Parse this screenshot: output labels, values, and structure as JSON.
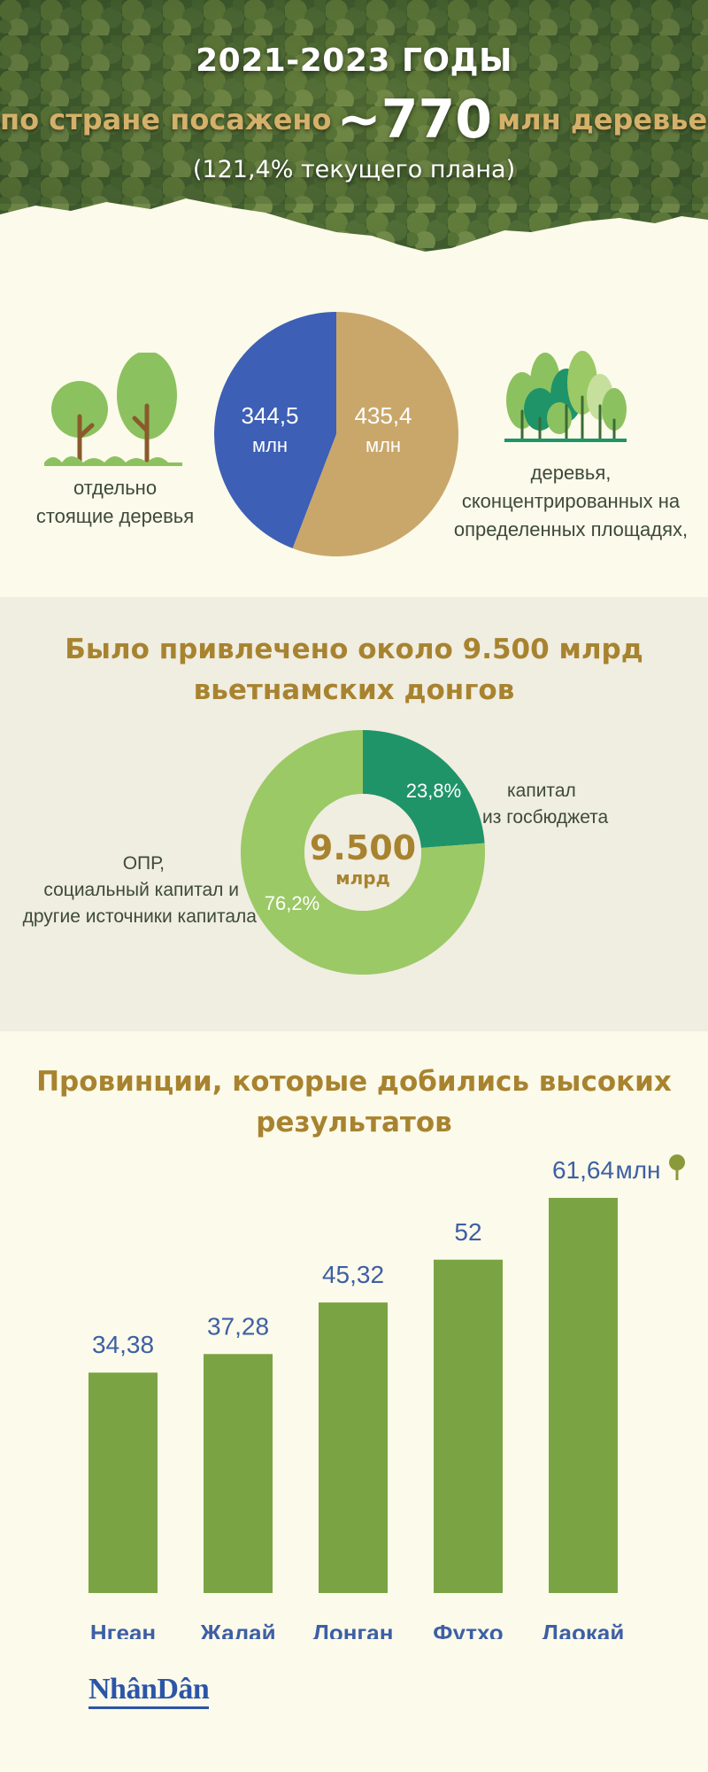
{
  "header": {
    "years": "2021-2023 ГОДЫ",
    "line_prefix": "по стране посажено",
    "big_number": "~770",
    "line_suffix": "млн деревьев",
    "sub": "(121,4%   текущего плана)"
  },
  "trees_split": {
    "left_label_1": "отдельно",
    "left_label_2": "стоящие деревья",
    "right_label_1": "деревья,",
    "right_label_2": "сконцентрированных на",
    "right_label_3": "определенных площадях,",
    "slices": [
      {
        "value": 344.5,
        "label": "344,5",
        "unit": "млн",
        "color": "#3d5fb5"
      },
      {
        "value": 435.4,
        "label": "435,4",
        "unit": "млн",
        "color": "#c9a76b"
      }
    ]
  },
  "funding": {
    "title_1": "Было привлечено около 9.500 млрд",
    "title_2": "вьетнамских донгов",
    "center_value": "9.500",
    "center_unit": "млрд",
    "state_label_1": "капитал",
    "state_label_2": "из госбюджета",
    "other_label_1": "ОПР,",
    "other_label_2": "социальный капитал и",
    "other_label_3": "другие источники капитала",
    "slices": [
      {
        "value": 23.8,
        "label": "23,8%",
        "color": "#1f9468"
      },
      {
        "value": 76.2,
        "label": "76,2%",
        "color": "#9bc965"
      }
    ]
  },
  "provinces": {
    "title_1": "Провинции, которые добились высоких",
    "title_2": "результатов",
    "unit": "млн"
  },
  "chart_data": [
    {
      "type": "pie",
      "categories": [
        "отдельно стоящие деревья",
        "деревья, сконцентрированных на определенных площадях,"
      ],
      "values": [
        344.5,
        435.4
      ],
      "title": "",
      "xlabel": "",
      "ylabel": ""
    },
    {
      "type": "pie",
      "categories": [
        "капитал из госбюджета",
        "ОПР, социальный капитал и другие источники капитала"
      ],
      "values": [
        23.8,
        76.2
      ],
      "title": "Было привлечено около 9.500 млрд вьетнамских донгов",
      "xlabel": "",
      "ylabel": ""
    },
    {
      "type": "bar",
      "categories": [
        "Нгеан",
        "Жалай",
        "Лонган",
        "Футхо",
        "Лаокай"
      ],
      "values": [
        34.38,
        37.28,
        45.32,
        52,
        61.64
      ],
      "value_labels": [
        "34,38",
        "37,28",
        "45,32",
        "52",
        "61,64"
      ],
      "title": "Провинции, которые добились высоких результатов",
      "xlabel": "",
      "ylabel": "",
      "ylim": [
        0,
        61.64
      ],
      "grid": false,
      "bar_color": "#7aa444"
    }
  ],
  "footer": {
    "logo": "NhânDân"
  }
}
